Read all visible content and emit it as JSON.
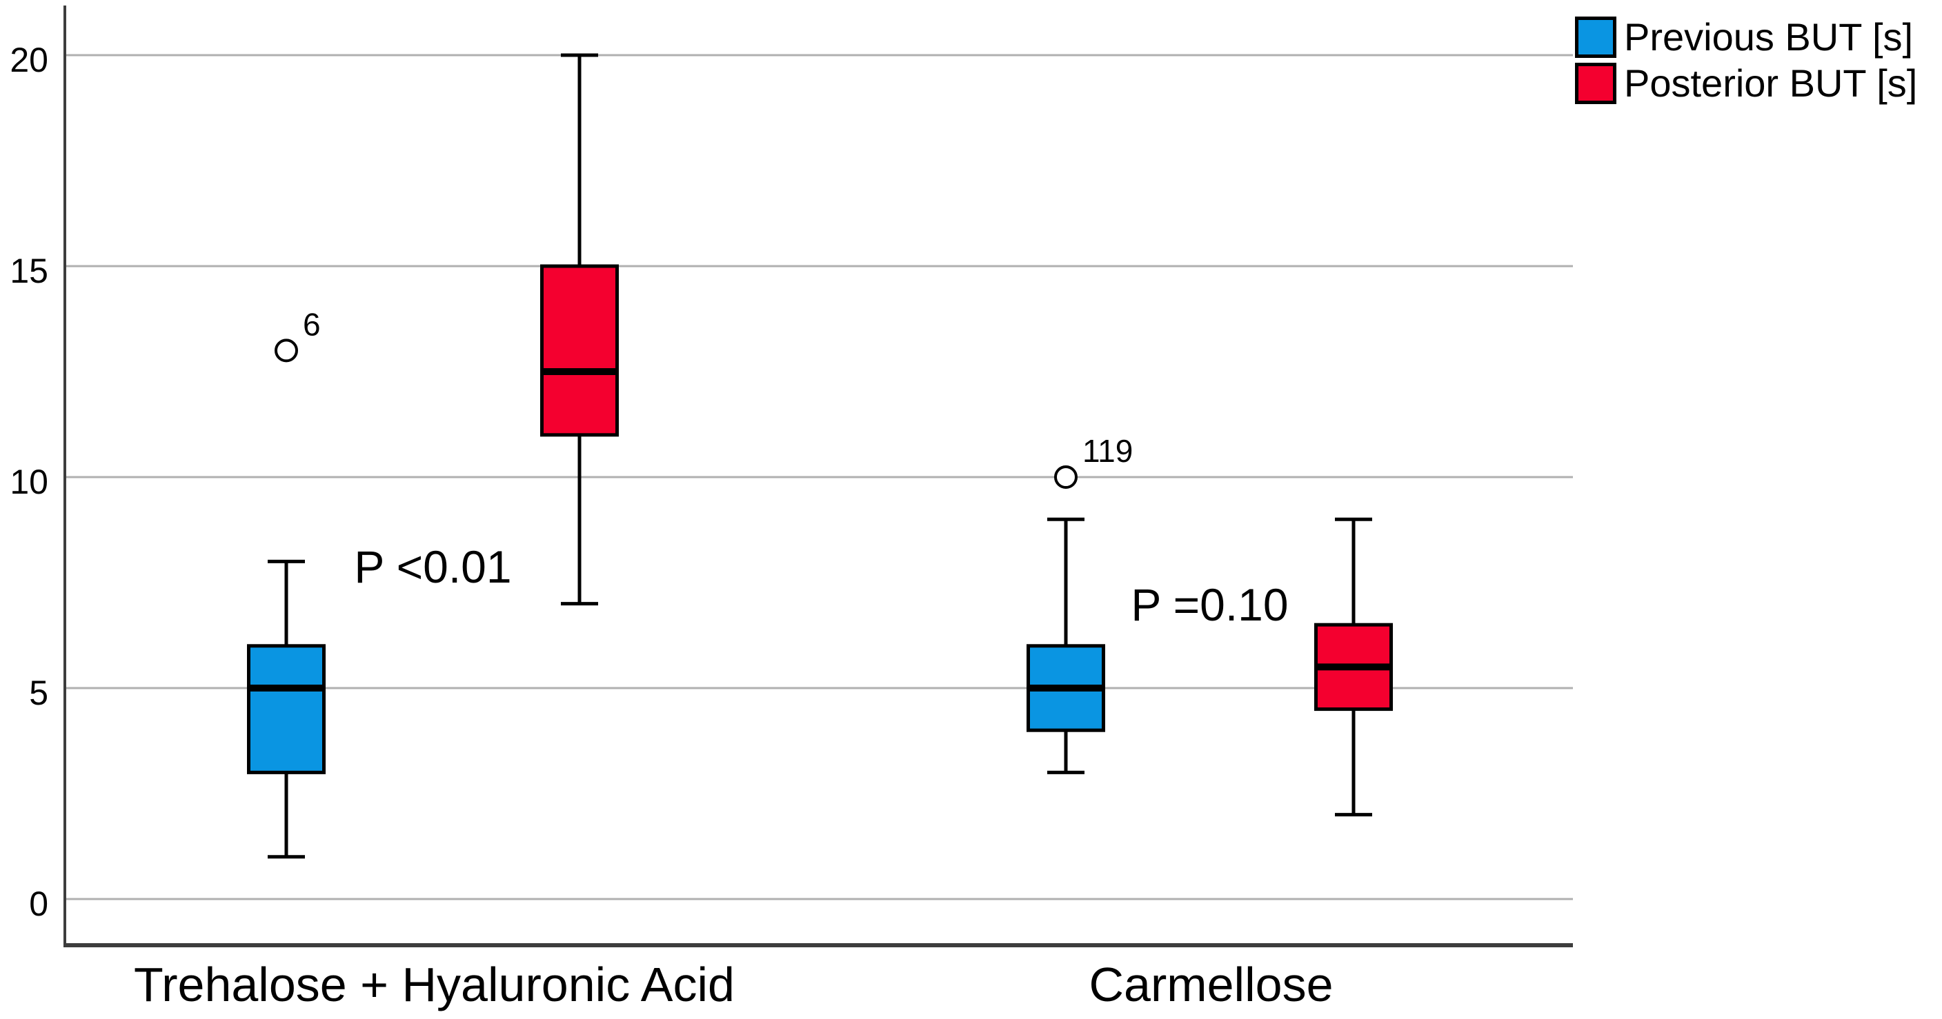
{
  "chart_data": {
    "type": "boxplot",
    "title": "",
    "xlabel": "",
    "ylabel": "",
    "ylim": [
      0,
      21
    ],
    "yticks": [
      0,
      5,
      10,
      15,
      20
    ],
    "grid": true,
    "gridline_color": "#b0b0b0",
    "axis_color": "#3d3d3d",
    "text_color": "#000000",
    "legend": {
      "position": "top-right",
      "items": [
        {
          "label": "Previous BUT [s]",
          "color": "#0A95E2"
        },
        {
          "label": "Posterior BUT [s]",
          "color": "#F4002F"
        }
      ]
    },
    "groups": [
      {
        "label": "Trehalose + Hyaluronic Acid",
        "p_label": "P <0.01",
        "p_label_y": 7.5,
        "boxes": [
          {
            "series": "Previous BUT [s]",
            "color": "#0A95E2",
            "whisker_low": 1,
            "q1": 3,
            "median": 5,
            "q3": 6,
            "whisker_high": 8,
            "outliers": [
              {
                "value": 13,
                "label": "6"
              }
            ]
          },
          {
            "series": "Posterior BUT [s]",
            "color": "#F4002F",
            "whisker_low": 7,
            "q1": 11,
            "median": 12.5,
            "q3": 15,
            "whisker_high": 20,
            "outliers": []
          }
        ]
      },
      {
        "label": "Carmellose",
        "p_label": "P =0.10",
        "p_label_y": 6.6,
        "boxes": [
          {
            "series": "Previous BUT [s]",
            "color": "#0A95E2",
            "whisker_low": 3,
            "q1": 4,
            "median": 5,
            "q3": 6,
            "whisker_high": 9,
            "outliers": [
              {
                "value": 10,
                "label": "119"
              }
            ]
          },
          {
            "series": "Posterior BUT [s]",
            "color": "#F4002F",
            "whisker_low": 2,
            "q1": 4.5,
            "median": 5.5,
            "q3": 6.5,
            "whisker_high": 9,
            "outliers": []
          }
        ]
      }
    ]
  }
}
